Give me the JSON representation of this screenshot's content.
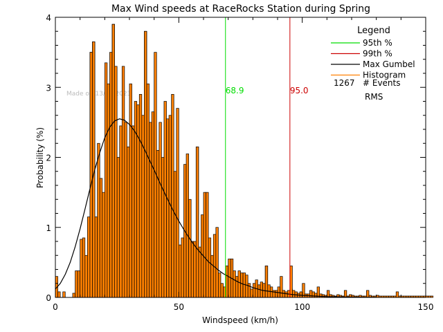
{
  "chart_data": {
    "type": "bar",
    "title": "Max Wind speeds at RaceRocks Station during Spring",
    "xlabel": "Windspeed (km/h)",
    "ylabel": "Probability  (%)",
    "xlim": [
      0,
      150
    ],
    "ylim": [
      0,
      4
    ],
    "xticks": [
      "0",
      "50",
      "100",
      "150"
    ],
    "yticks": [
      "0",
      "1",
      "2",
      "3",
      "4"
    ],
    "watermark": "Made on 13/04/2023",
    "bin_width": 1,
    "histogram": {
      "bin_start": 0,
      "values": [
        0.3,
        0.08,
        0,
        0.08,
        0,
        0,
        0,
        0.06,
        0.38,
        0.38,
        0.83,
        0.85,
        0.6,
        1.15,
        3.5,
        3.65,
        1.15,
        2.2,
        1.7,
        1.5,
        3.35,
        3.05,
        3.5,
        3.9,
        3.3,
        2.0,
        2.45,
        3.3,
        2.5,
        2.15,
        3.05,
        2.45,
        2.8,
        2.75,
        2.9,
        2.6,
        3.8,
        3.05,
        2.5,
        2.65,
        3.5,
        2.1,
        2.5,
        2.0,
        2.8,
        2.55,
        2.6,
        2.9,
        1.8,
        2.7,
        0.75,
        0.85,
        1.9,
        2.05,
        1.4,
        0.8,
        0.8,
        2.15,
        0.72,
        1.18,
        1.5,
        0.5,
        0.85,
        0.6,
        0.9,
        1.0,
        0.35,
        0.2,
        0.15,
        0.45,
        0.25,
        0.55,
        0.38,
        0.3,
        0.18,
        0.35,
        0.3,
        0.32,
        0.2,
        0.12,
        0.2,
        0.15,
        0.18,
        0.22,
        0.2,
        0.45,
        0.18,
        0.15,
        0.1,
        0.1,
        0.15,
        0.12,
        0.1,
        0.08,
        0.1,
        0.12,
        0.1,
        0.08,
        0.06,
        0.08,
        0.06,
        0.05,
        0.05,
        0.1,
        0.08,
        0.06,
        0.04,
        0.05,
        0.04,
        0.03,
        0.05,
        0.04,
        0.03,
        0.02,
        0.04,
        0.03,
        0.02,
        0.03,
        0.02,
        0.04,
        0.03,
        0.02,
        0.02,
        0.03,
        0.02,
        0.02,
        0.02,
        0.03,
        0.02,
        0.02,
        0.03,
        0.02,
        0.02,
        0.02,
        0.02,
        0.02,
        0.02,
        0.02,
        0.02,
        0.02,
        0.02,
        0.02,
        0.02,
        0.02,
        0.02,
        0.02,
        0.02,
        0.02,
        0.02,
        0.02,
        0.02,
        0.02,
        0.02
      ],
      "spikes": [
        {
          "x": 14,
          "y": 3.5
        },
        {
          "x": 15,
          "y": 3.65
        },
        {
          "x": 23,
          "y": 3.9
        },
        {
          "x": 36,
          "y": 3.8
        },
        {
          "x": 57,
          "y": 2.15
        },
        {
          "x": 61,
          "y": 1.5
        },
        {
          "x": 70,
          "y": 0.55
        },
        {
          "x": 74,
          "y": 0.38
        },
        {
          "x": 76,
          "y": 0.35
        },
        {
          "x": 81,
          "y": 0.25
        },
        {
          "x": 85,
          "y": 0.45
        },
        {
          "x": 91,
          "y": 0.3
        },
        {
          "x": 95,
          "y": 0.45
        },
        {
          "x": 100,
          "y": 0.2
        },
        {
          "x": 106,
          "y": 0.15
        },
        {
          "x": 110,
          "y": 0.1
        },
        {
          "x": 117,
          "y": 0.1
        },
        {
          "x": 126,
          "y": 0.1
        },
        {
          "x": 138,
          "y": 0.08
        }
      ]
    },
    "gumbel": {
      "x": [
        0,
        2,
        4,
        6,
        8,
        10,
        12,
        14,
        16,
        18,
        20,
        22,
        24,
        26,
        28,
        30,
        32,
        34,
        36,
        38,
        40,
        42,
        44,
        46,
        48,
        50,
        52,
        54,
        56,
        58,
        60,
        62,
        64,
        66,
        68,
        70,
        72,
        74,
        76,
        78,
        80,
        82,
        84,
        86,
        88,
        90,
        92,
        94,
        96,
        98,
        100,
        105,
        110,
        115,
        120,
        125,
        130
      ],
      "y": [
        0.12,
        0.2,
        0.33,
        0.5,
        0.72,
        0.98,
        1.26,
        1.55,
        1.83,
        2.07,
        2.28,
        2.43,
        2.52,
        2.55,
        2.53,
        2.47,
        2.38,
        2.26,
        2.12,
        1.97,
        1.82,
        1.66,
        1.51,
        1.36,
        1.22,
        1.09,
        0.97,
        0.86,
        0.76,
        0.67,
        0.59,
        0.51,
        0.45,
        0.39,
        0.34,
        0.3,
        0.26,
        0.22,
        0.19,
        0.17,
        0.14,
        0.12,
        0.1,
        0.09,
        0.08,
        0.07,
        0.06,
        0.05,
        0.04,
        0.035,
        0.03,
        0.02,
        0.012,
        0.008,
        0.005,
        0.003,
        0.002
      ]
    },
    "percentiles": [
      {
        "name": "95th %",
        "value": 68.9,
        "label": "68.9",
        "color": "#00dd00"
      },
      {
        "name": "99th %",
        "value": 95.0,
        "label": "95.0",
        "color": "#cc0000"
      }
    ],
    "legend": {
      "title": "Legend",
      "placement": "top-right",
      "items": [
        {
          "label": "95th %",
          "color": "#00dd00"
        },
        {
          "label": "99th %",
          "color": "#cc0000"
        },
        {
          "label": "Max Gumbel",
          "color": "#000000"
        },
        {
          "label": "Histogram",
          "color": "#ff8000"
        }
      ],
      "events_count": "1267",
      "events_label": "# Events",
      "rms_label": "RMS"
    },
    "colors": {
      "histogram_fill": "#ff8000",
      "histogram_edge": "#000000",
      "gumbel": "#000000"
    }
  }
}
